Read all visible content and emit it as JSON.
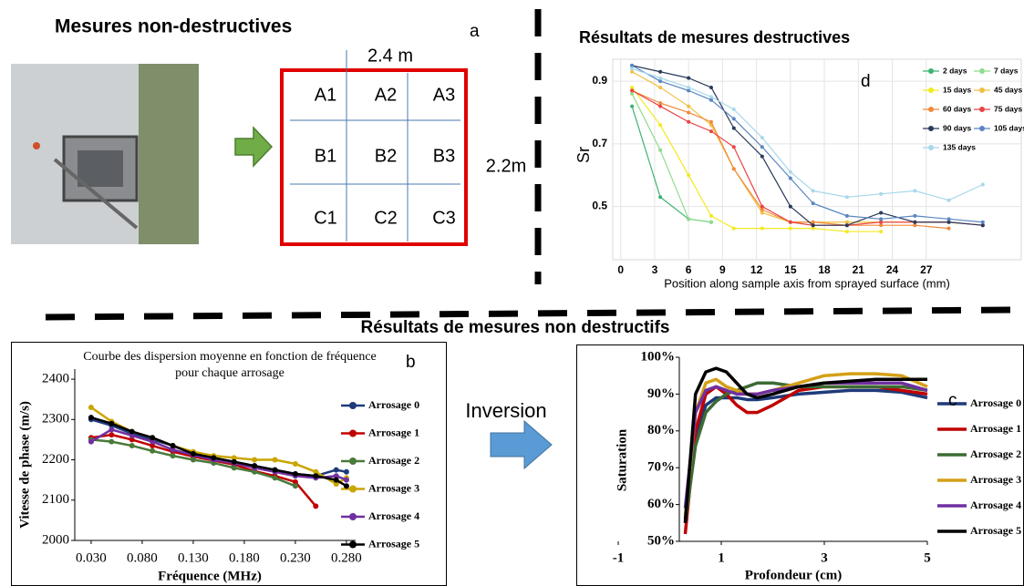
{
  "panel_a": {
    "title": "Mesures non-destructives",
    "label": "a",
    "width_label": "2.4 m",
    "height_label": "2.2m",
    "cells": [
      [
        "A1",
        "A2",
        "A3"
      ],
      [
        "B1",
        "B2",
        "B3"
      ],
      [
        "C1",
        "C2",
        "C3"
      ]
    ]
  },
  "section_title": "Résultats de mesures non destructifs",
  "inversion_label": "Inversion",
  "chart_data": [
    {
      "type": "line",
      "title": "Résultats de mesures destructives",
      "panel_label": "d",
      "ylabel": "Sr",
      "xlabel": "Position along sample axis from sprayed surface (mm)",
      "grid": true,
      "markers": true,
      "legend": "upper right",
      "x": [
        1,
        3.5,
        6,
        8,
        10,
        12.5,
        15,
        17,
        20,
        23,
        26,
        29,
        32
      ],
      "xlim": [
        -0.7,
        35.4
      ],
      "xticks": [
        0,
        3,
        6,
        9,
        12,
        15,
        18,
        21,
        24,
        27
      ],
      "ylim": [
        0.33,
        0.97
      ],
      "yticks": [
        0.5,
        0.7,
        0.9
      ],
      "series": [
        {
          "name": "2 days",
          "color": "#3cb371",
          "values": [
            0.82,
            0.53,
            0.46,
            0.45,
            null,
            null,
            null,
            null,
            null,
            null,
            null,
            null,
            null
          ]
        },
        {
          "name": "7 days",
          "color": "#8fdc8f",
          "values": [
            0.86,
            0.68,
            0.46,
            0.45,
            null,
            null,
            null,
            null,
            null,
            null,
            null,
            null,
            null
          ]
        },
        {
          "name": "15 days",
          "color": "#f2ea20",
          "values": [
            0.88,
            0.76,
            0.6,
            0.47,
            0.43,
            0.43,
            0.43,
            0.43,
            0.42,
            0.42,
            null,
            null,
            null
          ]
        },
        {
          "name": "45 days",
          "color": "#f0c040",
          "values": [
            0.93,
            0.88,
            0.82,
            0.76,
            0.62,
            0.48,
            0.45,
            0.45,
            0.45,
            0.45,
            0.45,
            0.45,
            null
          ]
        },
        {
          "name": "60 days",
          "color": "#f08a3c",
          "values": [
            0.87,
            0.83,
            0.8,
            0.77,
            0.62,
            0.49,
            0.45,
            0.45,
            0.44,
            0.44,
            0.44,
            0.43,
            null
          ]
        },
        {
          "name": "75 days",
          "color": "#e84545",
          "values": [
            0.87,
            0.82,
            0.77,
            0.74,
            0.69,
            0.5,
            0.45,
            0.44,
            0.44,
            0.45,
            0.45,
            0.45,
            0.44
          ]
        },
        {
          "name": "90 days",
          "color": "#2a3a5a",
          "values": [
            0.95,
            0.93,
            0.91,
            0.88,
            0.75,
            0.66,
            0.5,
            0.44,
            0.44,
            0.48,
            0.45,
            0.45,
            0.44
          ]
        },
        {
          "name": "105 days",
          "color": "#5a86c0",
          "values": [
            0.95,
            0.9,
            0.87,
            0.84,
            0.78,
            0.69,
            0.59,
            0.51,
            0.47,
            0.46,
            0.47,
            0.46,
            0.45
          ]
        },
        {
          "name": "135 days",
          "color": "#a8d8ea",
          "values": [
            0.94,
            0.91,
            0.88,
            0.85,
            0.81,
            0.72,
            0.61,
            0.55,
            0.53,
            0.54,
            0.55,
            0.52,
            0.57
          ]
        }
      ]
    },
    {
      "type": "line",
      "title": "Courbe des dispersion moyenne en fonction de fréquence pour chaque arrosage",
      "panel_label": "b",
      "ylabel": "Vitesse de phase (m/s)",
      "xlabel": "Fréquence (MHz)",
      "grid": false,
      "markers": true,
      "legend": "right",
      "x": [
        0.03,
        0.05,
        0.07,
        0.09,
        0.11,
        0.13,
        0.15,
        0.17,
        0.19,
        0.21,
        0.23,
        0.25,
        0.27,
        0.28
      ],
      "xlim": [
        0.014,
        0.289
      ],
      "xticks": [
        {
          "value": 0.03,
          "label": "0.030"
        },
        {
          "value": 0.08,
          "label": "0.080"
        },
        {
          "value": 0.13,
          "label": "0.130"
        },
        {
          "value": 0.18,
          "label": "0.180"
        },
        {
          "value": 0.23,
          "label": "0.230"
        },
        {
          "value": 0.28,
          "label": "0.280"
        }
      ],
      "ylim": [
        2000,
        2425
      ],
      "yticks": [
        2000,
        2100,
        2200,
        2300,
        2400
      ],
      "series": [
        {
          "name": "Arrosage 0",
          "color": "#1f3a7a",
          "values": [
            2300,
            2285,
            2265,
            2250,
            2235,
            2215,
            2205,
            2195,
            2185,
            2175,
            2165,
            2160,
            2175,
            2170
          ]
        },
        {
          "name": "Arrosage 1",
          "color": "#c00000",
          "values": [
            2255,
            2262,
            2250,
            2235,
            2220,
            2208,
            2198,
            2188,
            2172,
            2160,
            2145,
            2085,
            null,
            null
          ]
        },
        {
          "name": "Arrosage 2",
          "color": "#4a7a3a",
          "values": [
            2250,
            2245,
            2235,
            2222,
            2210,
            2200,
            2192,
            2180,
            2170,
            2155,
            2135,
            null,
            null,
            null
          ]
        },
        {
          "name": "Arrosage 3",
          "color": "#c9a500",
          "values": [
            2330,
            2295,
            2270,
            2255,
            2235,
            2220,
            2210,
            2205,
            2200,
            2200,
            2190,
            2170,
            2140,
            2155
          ]
        },
        {
          "name": "Arrosage 4",
          "color": "#7030a0",
          "values": [
            2245,
            2275,
            2260,
            2245,
            2225,
            2212,
            2200,
            2192,
            2180,
            2170,
            2160,
            2155,
            2160,
            2150
          ]
        },
        {
          "name": "Arrosage 5",
          "color": "#000000",
          "values": [
            2305,
            2290,
            2270,
            2255,
            2235,
            2215,
            2205,
            2195,
            2185,
            2175,
            2165,
            2160,
            2150,
            2135
          ]
        }
      ]
    },
    {
      "type": "line",
      "panel_label": "c",
      "ylabel": "Saturation",
      "xlabel": "Profondeur (cm)",
      "grid": false,
      "markers": false,
      "legend": "right",
      "x": [
        0.3,
        0.5,
        0.7,
        0.9,
        1.1,
        1.3,
        1.5,
        1.7,
        2.0,
        2.5,
        3.0,
        3.5,
        4.0,
        4.5,
        5.0
      ],
      "xlim": [
        -1,
        5
      ],
      "xticks": [
        -1,
        1,
        3,
        5
      ],
      "ylim": [
        50,
        100
      ],
      "yticks": [
        {
          "value": 50,
          "label": "50%"
        },
        {
          "value": 60,
          "label": "60%"
        },
        {
          "value": 70,
          "label": "70%"
        },
        {
          "value": 80,
          "label": "80%"
        },
        {
          "value": 90,
          "label": "90%"
        },
        {
          "value": 100,
          "label": "100%"
        }
      ],
      "series": [
        {
          "name": "Arrosage 0",
          "color": "#1f3a7a",
          "values": [
            56,
            78,
            87,
            89,
            89,
            89,
            88.5,
            88.5,
            89,
            90,
            90.5,
            91,
            91,
            90.5,
            89
          ]
        },
        {
          "name": "Arrosage 1",
          "color": "#c00000",
          "values": [
            52,
            80,
            90,
            92,
            90,
            87,
            85,
            85,
            87,
            91,
            92,
            92,
            92,
            91,
            90
          ]
        },
        {
          "name": "Arrosage 2",
          "color": "#3d6b35",
          "values": [
            55,
            76,
            85,
            88,
            90,
            91,
            92,
            93,
            93,
            92,
            92,
            92,
            92,
            92,
            91
          ]
        },
        {
          "name": "Arrosage 3",
          "color": "#d4a017",
          "values": [
            57,
            85,
            93,
            94,
            92,
            91,
            90,
            90,
            91,
            93,
            95,
            95.5,
            95.5,
            95,
            92
          ]
        },
        {
          "name": "Arrosage 4",
          "color": "#7030a0",
          "values": [
            59,
            85,
            91,
            92,
            91,
            90,
            90,
            90,
            91,
            92,
            93,
            93,
            93,
            93,
            91
          ]
        },
        {
          "name": "Arrosage 5",
          "color": "#000000",
          "values": [
            55,
            90,
            96,
            97,
            96,
            93,
            90,
            89,
            90,
            92,
            93,
            93.5,
            94,
            94,
            94
          ]
        }
      ]
    }
  ]
}
